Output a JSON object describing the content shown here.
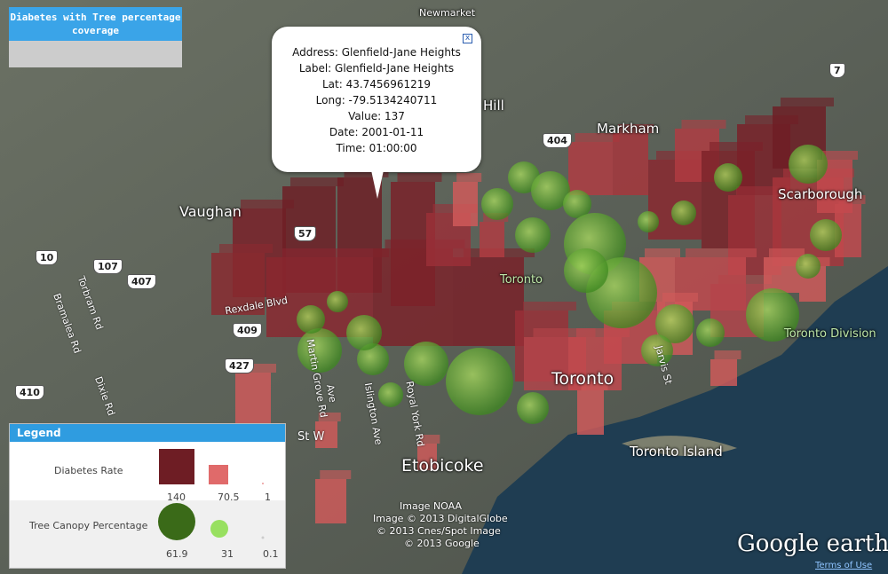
{
  "title": "Diabetes with Tree percentage coverage",
  "popup": {
    "lines": [
      "Address: Glenfield-Jane Heights",
      "Label: Glenfield-Jane Heights",
      "Lat: 43.7456961219",
      "Long: -79.5134240711",
      "Value: 137",
      "Date: 2001-01-11",
      "Time: 01:00:00"
    ]
  },
  "legend": {
    "title": "Legend",
    "rows": [
      {
        "label": "Diabetes Rate",
        "items": [
          "140",
          "70.5",
          "1"
        ]
      },
      {
        "label": "Tree Canopy Percentage",
        "items": [
          "61.9",
          "31",
          "0.1"
        ]
      }
    ]
  },
  "places": [
    "Newmarket",
    "Hill",
    "Markham",
    "Vaughan",
    "Scarborough",
    "Toronto",
    "Toronto",
    "Toronto Division",
    "Toronto Island",
    "Etobicoke"
  ],
  "streets": [
    "Rexdale Blvd",
    "Dixie Rd",
    "Bramalea Rd",
    "Torbram Rd",
    "Martin Grove Rd",
    "Islington Ave",
    "Royal York Rd",
    "St W",
    "Ave",
    "Jarvis St"
  ],
  "road_signs": [
    "10",
    "107",
    "407",
    "409",
    "427",
    "410",
    "57",
    "404",
    "7"
  ],
  "attribution": [
    "Image NOAA",
    "Image © 2013 DigitalGlobe",
    "© 2013 Cnes/Spot Image",
    "© 2013 Google"
  ],
  "branding": "Google earth",
  "terms": "Terms of Use"
}
